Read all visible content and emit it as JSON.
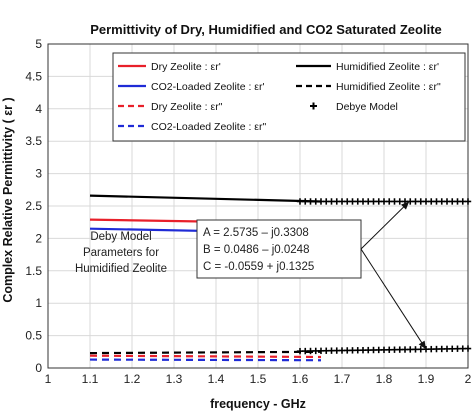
{
  "chart_data": {
    "type": "line",
    "title": "Permittivity of Dry, Humidified and CO2 Saturated Zeolite",
    "xlabel": "frequency - GHz",
    "ylabel": "Complex Relative Permittivity ( εr )",
    "xlim": [
      1,
      2
    ],
    "ylim": [
      0,
      5
    ],
    "xticks": [
      "1",
      "1.1",
      "1.2",
      "1.3",
      "1.4",
      "1.5",
      "1.6",
      "1.7",
      "1.8",
      "1.9",
      "2"
    ],
    "yticks": [
      "0",
      "0.5",
      "1",
      "1.5",
      "2",
      "2.5",
      "3",
      "3.5",
      "4",
      "4.5",
      "5"
    ],
    "grid": true,
    "legend_position": "top",
    "series": [
      {
        "name": "Dry Zeolite : εr'",
        "color": "#e8202a",
        "dash": "solid",
        "x": [
          1.1,
          1.65
        ],
        "y": [
          2.29,
          2.23
        ]
      },
      {
        "name": "CO2-Loaded Zeolite : εr'",
        "color": "#1f2bd6",
        "dash": "solid",
        "x": [
          1.1,
          1.65
        ],
        "y": [
          2.15,
          2.08
        ]
      },
      {
        "name": "Dry Zeolite : εr\"",
        "color": "#e8202a",
        "dash": "dashed",
        "x": [
          1.1,
          1.65
        ],
        "y": [
          0.19,
          0.17
        ]
      },
      {
        "name": "CO2-Loaded Zeolite : εr\"",
        "color": "#1f2bd6",
        "dash": "dashed",
        "x": [
          1.1,
          1.65
        ],
        "y": [
          0.13,
          0.12
        ]
      },
      {
        "name": "Humidified Zeolite : εr'",
        "color": "#000000",
        "dash": "solid",
        "x": [
          1.1,
          1.65
        ],
        "y": [
          2.66,
          2.57
        ]
      },
      {
        "name": "Humidified Zeolite : εr\"",
        "color": "#000000",
        "dash": "dashed",
        "x": [
          1.1,
          1.65
        ],
        "y": [
          0.23,
          0.25
        ]
      },
      {
        "name": "Debye Model",
        "color": "#000000",
        "dash": "marker",
        "x": [
          1.6,
          2.0
        ],
        "y_real": [
          2.57,
          2.57
        ],
        "y_imag": [
          0.26,
          0.3
        ]
      }
    ],
    "annotation": {
      "label_lines": [
        "Deby Model",
        "Parameters for",
        "Humidified Zeolite"
      ],
      "params": [
        "A = 2.5735 – j0.3308",
        "B = 0.0486 – j0.0248",
        "C = -0.0559 + j0.1325"
      ],
      "arrow_targets": [
        {
          "x": 1.86,
          "y": 2.57
        },
        {
          "x": 1.9,
          "y": 0.29
        }
      ]
    }
  }
}
